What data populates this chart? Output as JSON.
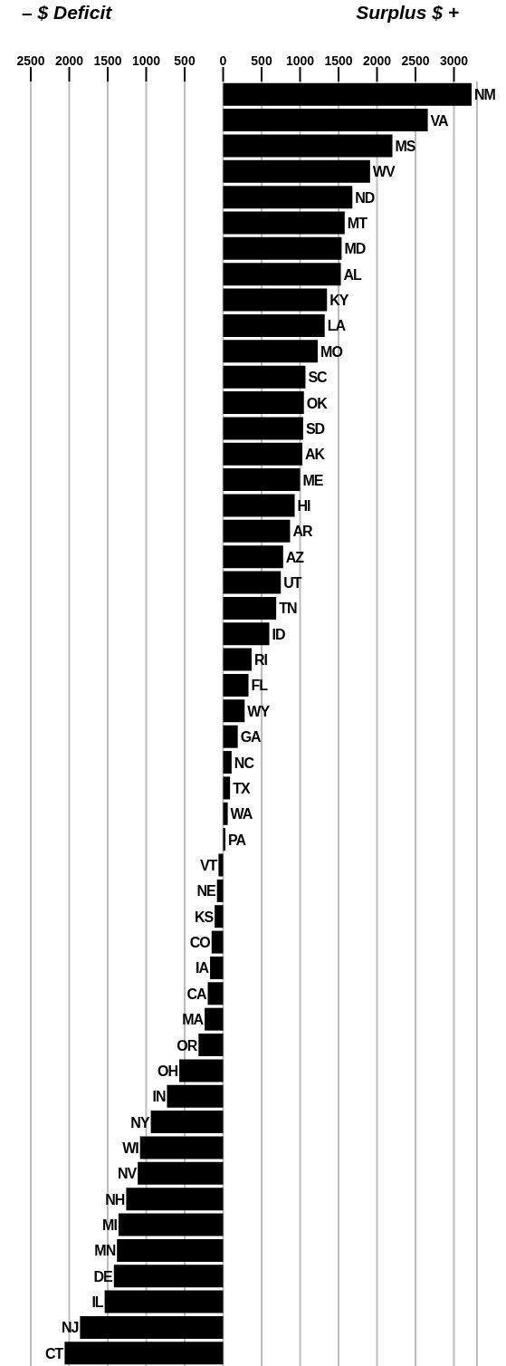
{
  "chart_data": {
    "type": "bar",
    "orientation": "horizontal",
    "annotations": [
      "– $ Deficit",
      "Surplus $ +"
    ],
    "categories": [
      "NM",
      "VA",
      "MS",
      "WV",
      "ND",
      "MT",
      "MD",
      "AL",
      "KY",
      "LA",
      "MO",
      "SC",
      "OK",
      "SD",
      "AK",
      "ME",
      "HI",
      "AR",
      "AZ",
      "UT",
      "TN",
      "ID",
      "RI",
      "FL",
      "WY",
      "GA",
      "NC",
      "TX",
      "WA",
      "PA",
      "VT",
      "NE",
      "KS",
      "CO",
      "IA",
      "CA",
      "MA",
      "OR",
      "OH",
      "IN",
      "NY",
      "WI",
      "NV",
      "NH",
      "MI",
      "MN",
      "DE",
      "IL",
      "NJ",
      "CT"
    ],
    "values": [
      3230,
      2660,
      2200,
      1910,
      1680,
      1580,
      1540,
      1530,
      1350,
      1320,
      1230,
      1070,
      1050,
      1040,
      1030,
      1000,
      930,
      870,
      780,
      750,
      690,
      600,
      370,
      330,
      280,
      190,
      110,
      90,
      60,
      30,
      -60,
      -80,
      -110,
      -150,
      -170,
      -200,
      -240,
      -320,
      -570,
      -730,
      -940,
      -1080,
      -1110,
      -1260,
      -1360,
      -1380,
      -1420,
      -1540,
      -1860,
      -2060
    ],
    "color": "#000000",
    "xlim": [
      -2500,
      3300
    ],
    "xticks": [
      {
        "value": -2500,
        "label": "2500"
      },
      {
        "value": -2000,
        "label": "2000"
      },
      {
        "value": -1500,
        "label": "1500"
      },
      {
        "value": -1000,
        "label": "1000"
      },
      {
        "value": -500,
        "label": "500"
      },
      0,
      500,
      1000,
      1500,
      2000,
      2500,
      3000
    ],
    "grid": "x"
  }
}
